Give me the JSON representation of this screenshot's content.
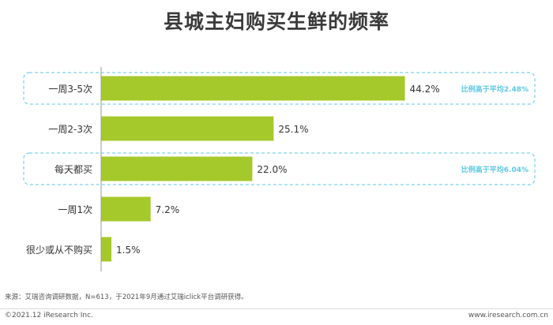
{
  "header": {
    "title": "县城主妇购买生鲜的频率"
  },
  "chart_data": {
    "type": "bar",
    "orientation": "horizontal",
    "categories": [
      "一周3-5次",
      "一周2-3次",
      "每天都买",
      "一周1次",
      "很少或从不购买"
    ],
    "values": [
      44.2,
      25.1,
      22.0,
      7.2,
      1.5
    ],
    "value_labels": [
      "44.2%",
      "25.1%",
      "22.0%",
      "7.2%",
      "1.5%"
    ],
    "unit": "%",
    "xlim": [
      0,
      60
    ],
    "grid": false,
    "legend": "none",
    "bar_color": "#a5c92a",
    "highlight_color": "#5bc8e6",
    "annotations": [
      {
        "category": "一周3-5次",
        "text": "比例高于平均2.48%"
      },
      {
        "category": "每天都买",
        "text": "比例高于平均6.04%"
      }
    ]
  },
  "footer": {
    "source": "来源：艾瑞咨询调研数据，N=613，于2021年9月通过艾瑞iclick平台调研获得。",
    "copyright": "©2021.12 iResearch Inc.",
    "website": "www.iresearch.com.cn"
  }
}
